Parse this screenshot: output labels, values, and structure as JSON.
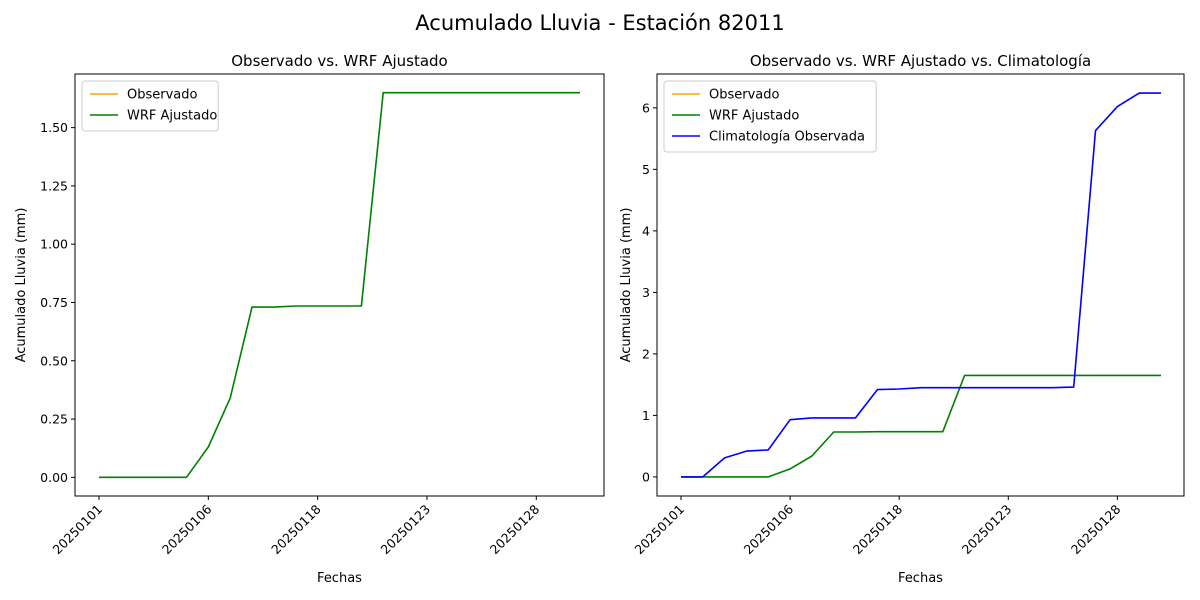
{
  "figure": {
    "title": "Acumulado Lluvia - Estación 82011"
  },
  "chart_data": [
    {
      "type": "line",
      "title": "Observado vs. WRF Ajustado",
      "xlabel": "Fechas",
      "ylabel": "Acumulado Lluvia (mm)",
      "x_tick_labels": [
        "20250101",
        "20250106",
        "20250118",
        "20250123",
        "20250128"
      ],
      "x_tick_index": [
        0,
        5,
        10,
        15,
        20
      ],
      "x_count": 23,
      "ylim": [
        -0.08,
        1.73
      ],
      "y_ticks": [
        0.0,
        0.25,
        0.5,
        0.75,
        1.0,
        1.25,
        1.5
      ],
      "y_tick_labels": [
        "0.00",
        "0.25",
        "0.50",
        "0.75",
        "1.00",
        "1.25",
        "1.50"
      ],
      "legend": "top-left",
      "series": [
        {
          "name": "Observado",
          "color": "#ffa500",
          "values": []
        },
        {
          "name": "WRF Ajustado",
          "color": "#008000",
          "values": [
            0,
            0,
            0,
            0,
            0,
            0.13,
            0.34,
            0.73,
            0.73,
            0.735,
            0.735,
            0.735,
            0.735,
            1.65,
            1.65,
            1.65,
            1.65,
            1.65,
            1.65,
            1.65,
            1.65,
            1.65,
            1.65
          ]
        }
      ]
    },
    {
      "type": "line",
      "title": "Observado vs. WRF Ajustado vs. Climatología",
      "xlabel": "Fechas",
      "ylabel": "Acumulado Lluvia (mm)",
      "x_tick_labels": [
        "20250101",
        "20250106",
        "20250118",
        "20250123",
        "20250128"
      ],
      "x_tick_index": [
        0,
        5,
        10,
        15,
        20
      ],
      "x_count": 23,
      "ylim": [
        -0.31,
        6.55
      ],
      "y_ticks": [
        0,
        1,
        2,
        3,
        4,
        5,
        6
      ],
      "y_tick_labels": [
        "0",
        "1",
        "2",
        "3",
        "4",
        "5",
        "6"
      ],
      "legend": "top-left",
      "series": [
        {
          "name": "Observado",
          "color": "#ffa500",
          "values": []
        },
        {
          "name": "WRF Ajustado",
          "color": "#008000",
          "values": [
            0,
            0,
            0,
            0,
            0,
            0.13,
            0.34,
            0.73,
            0.73,
            0.735,
            0.735,
            0.735,
            0.735,
            1.65,
            1.65,
            1.65,
            1.65,
            1.65,
            1.65,
            1.65,
            1.65,
            1.65,
            1.65
          ]
        },
        {
          "name": "Climatología Observada",
          "color": "#0000ff",
          "values": [
            0,
            0,
            0.31,
            0.42,
            0.44,
            0.93,
            0.96,
            0.96,
            0.96,
            1.42,
            1.43,
            1.45,
            1.45,
            1.45,
            1.45,
            1.45,
            1.45,
            1.45,
            1.46,
            5.63,
            6.02,
            6.24,
            6.24
          ]
        }
      ]
    }
  ]
}
